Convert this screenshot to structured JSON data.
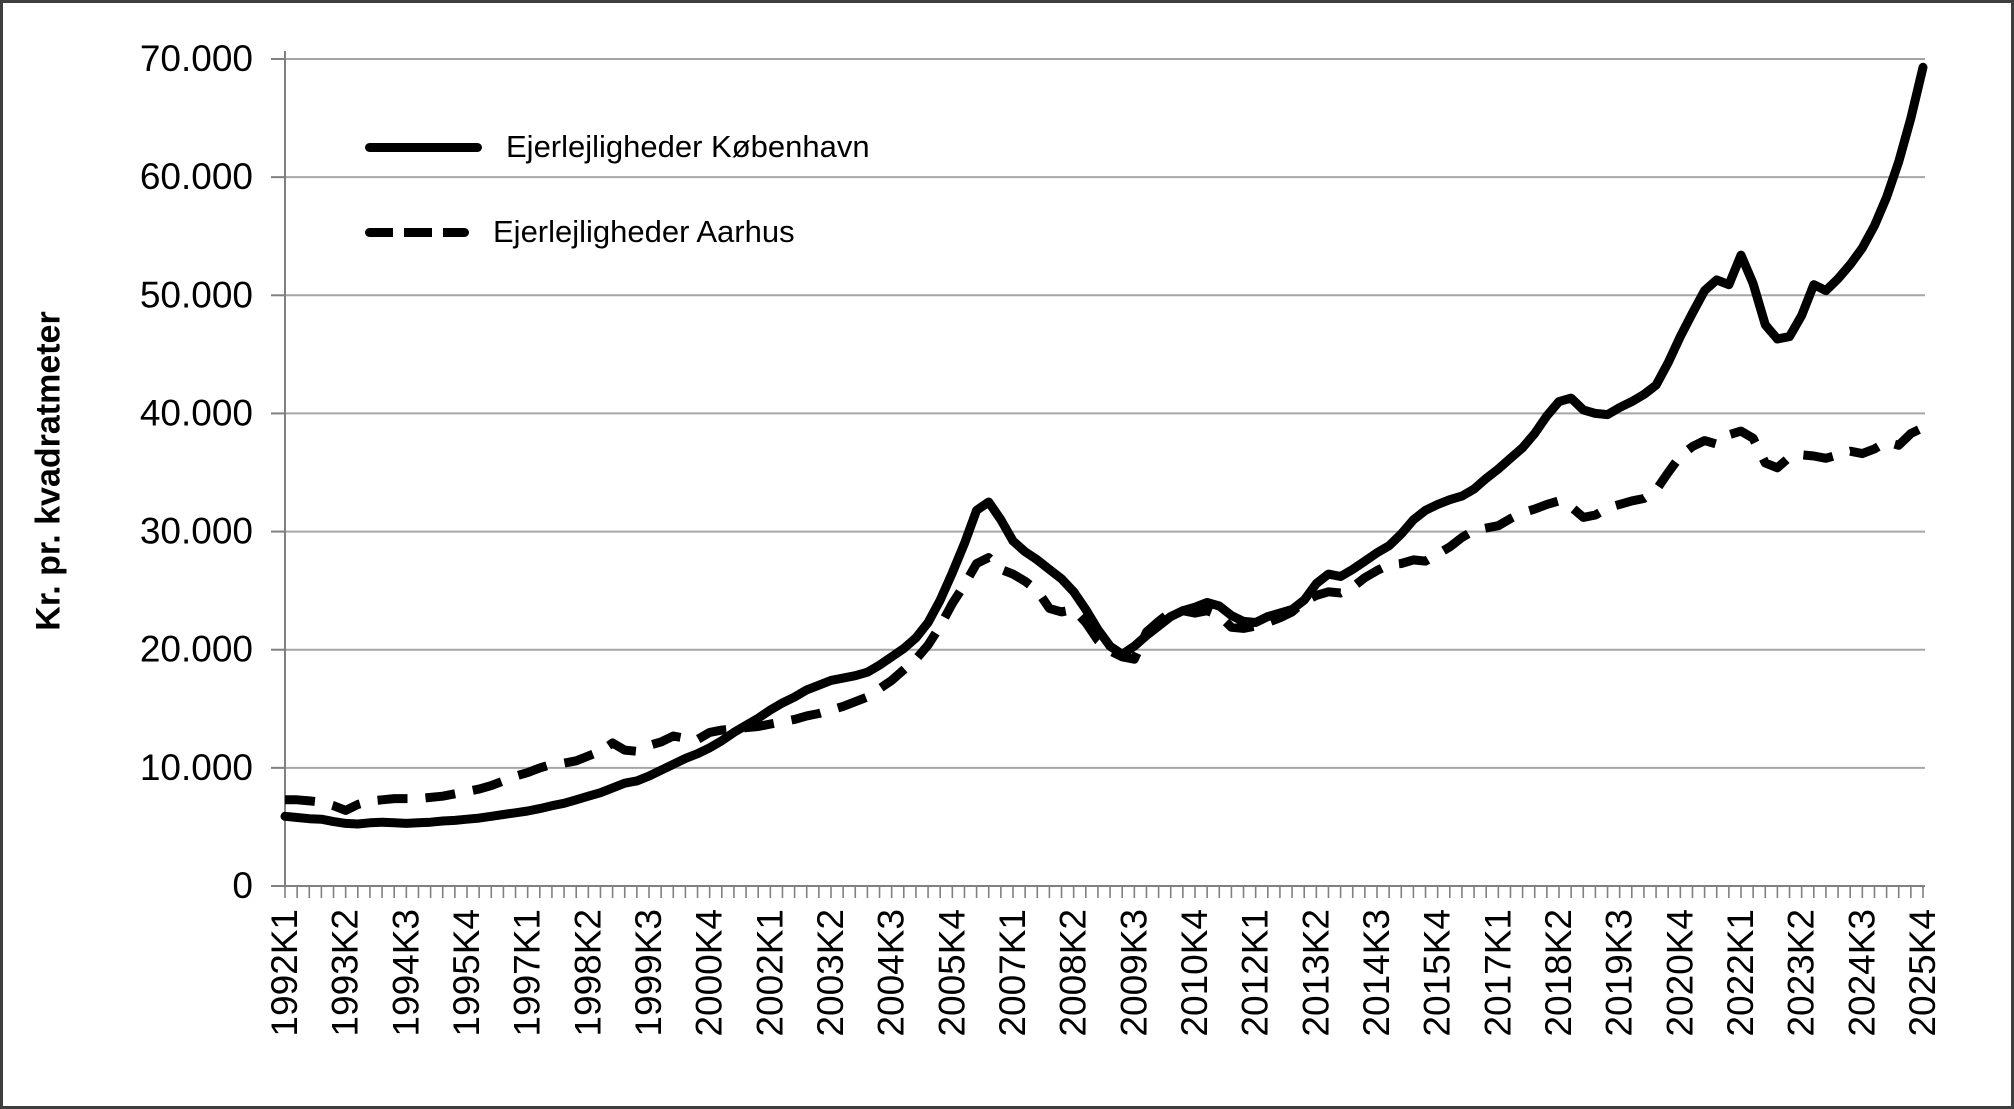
{
  "figure": {
    "background": "#ffffff",
    "border_color": "#3f3f3f",
    "gridline_color": "#a6a6a6",
    "axis_color": "#808080",
    "series_color": "#000000"
  },
  "chart_data": {
    "type": "line",
    "title": "",
    "xlabel": "",
    "ylabel": "Kr. pr. kvadratmeter",
    "ylim": [
      0,
      70000
    ],
    "y_tick_step": 10000,
    "grid": "horizontal",
    "legend_position": "top-left-inside",
    "y_tick_labels": [
      "0",
      "10.000",
      "20.000",
      "30.000",
      "40.000",
      "50.000",
      "60.000",
      "70.000"
    ],
    "x_tick_interval": 5,
    "x_tick_labels": [
      "1992K1",
      "1993K2",
      "1994K3",
      "1995K4",
      "1997K1",
      "1998K2",
      "1999K3",
      "2000K4",
      "2002K1",
      "2003K2",
      "2004K3",
      "2005K4",
      "2007K1",
      "2008K2",
      "2009K3",
      "2010K4",
      "2012K1",
      "2013K2",
      "2014K3",
      "2015K4",
      "2017K1",
      "2018K2",
      "2019K3",
      "2020K4",
      "2022K1",
      "2023K2",
      "2024K3",
      "2025K4"
    ],
    "x_range": "1992K1 to 2025K4, quarterly (136 points)",
    "series": [
      {
        "name": "Ejerlejligheder København",
        "style": "solid",
        "values": [
          5900,
          5800,
          5700,
          5650,
          5450,
          5300,
          5250,
          5350,
          5400,
          5350,
          5300,
          5350,
          5400,
          5500,
          5550,
          5650,
          5750,
          5900,
          6050,
          6200,
          6350,
          6550,
          6800,
          7000,
          7300,
          7600,
          7900,
          8300,
          8700,
          8900,
          9300,
          9800,
          10300,
          10800,
          11200,
          11700,
          12300,
          13000,
          13600,
          14200,
          14900,
          15500,
          16000,
          16600,
          17000,
          17400,
          17600,
          17800,
          18100,
          18700,
          19400,
          20100,
          21000,
          22300,
          24200,
          26500,
          29000,
          31800,
          32500,
          31000,
          29200,
          28300,
          27600,
          26800,
          26000,
          24900,
          23400,
          21700,
          20300,
          19600,
          20300,
          21200,
          22000,
          22800,
          23300,
          23600,
          24000,
          23700,
          22900,
          22400,
          22300,
          22800,
          23100,
          23400,
          24200,
          25600,
          26400,
          26200,
          26800,
          27500,
          28200,
          28800,
          29800,
          31000,
          31800,
          32300,
          32700,
          33000,
          33600,
          34500,
          35300,
          36200,
          37100,
          38300,
          39800,
          41000,
          41300,
          40300,
          40000,
          39900,
          40500,
          41000,
          41600,
          42400,
          44300,
          46500,
          48500,
          50400,
          51300,
          50900,
          53400,
          51000,
          47500,
          46300,
          46500,
          48300,
          50900,
          50400,
          51400,
          52600,
          54000,
          55900,
          58300,
          61300,
          65000,
          69300
        ]
      },
      {
        "name": "Ejerlejligheder Aarhus",
        "style": "dashed",
        "values": [
          7300,
          7300,
          7200,
          7100,
          6800,
          6400,
          6900,
          7200,
          7300,
          7400,
          7400,
          7400,
          7500,
          7600,
          7800,
          8000,
          8200,
          8500,
          8900,
          9300,
          9600,
          10000,
          10300,
          10400,
          10600,
          11000,
          11400,
          12100,
          11500,
          11400,
          11900,
          12200,
          12700,
          12500,
          12400,
          13000,
          13200,
          13300,
          13400,
          13500,
          13700,
          13900,
          14100,
          14400,
          14600,
          14900,
          15200,
          15600,
          16000,
          16700,
          17400,
          18300,
          19200,
          20400,
          22000,
          23900,
          25500,
          27300,
          27800,
          26800,
          26400,
          25800,
          25000,
          23500,
          23200,
          23400,
          22300,
          20800,
          19900,
          19400,
          19200,
          21500,
          22400,
          23200,
          23300,
          23100,
          23300,
          22900,
          21900,
          21800,
          22000,
          22300,
          22700,
          23200,
          24100,
          24600,
          24900,
          24800,
          25300,
          26100,
          26700,
          27200,
          27300,
          27600,
          27500,
          28100,
          28700,
          29500,
          30100,
          30300,
          30500,
          31100,
          31600,
          31900,
          32300,
          32600,
          32100,
          31200,
          31400,
          32000,
          32300,
          32600,
          32800,
          33500,
          35000,
          36400,
          37200,
          37700,
          37400,
          38200,
          38500,
          37900,
          35800,
          35400,
          36300,
          36500,
          36400,
          36200,
          36500,
          36800,
          36600,
          37000,
          37600,
          37300,
          38300,
          38800
        ]
      }
    ]
  }
}
